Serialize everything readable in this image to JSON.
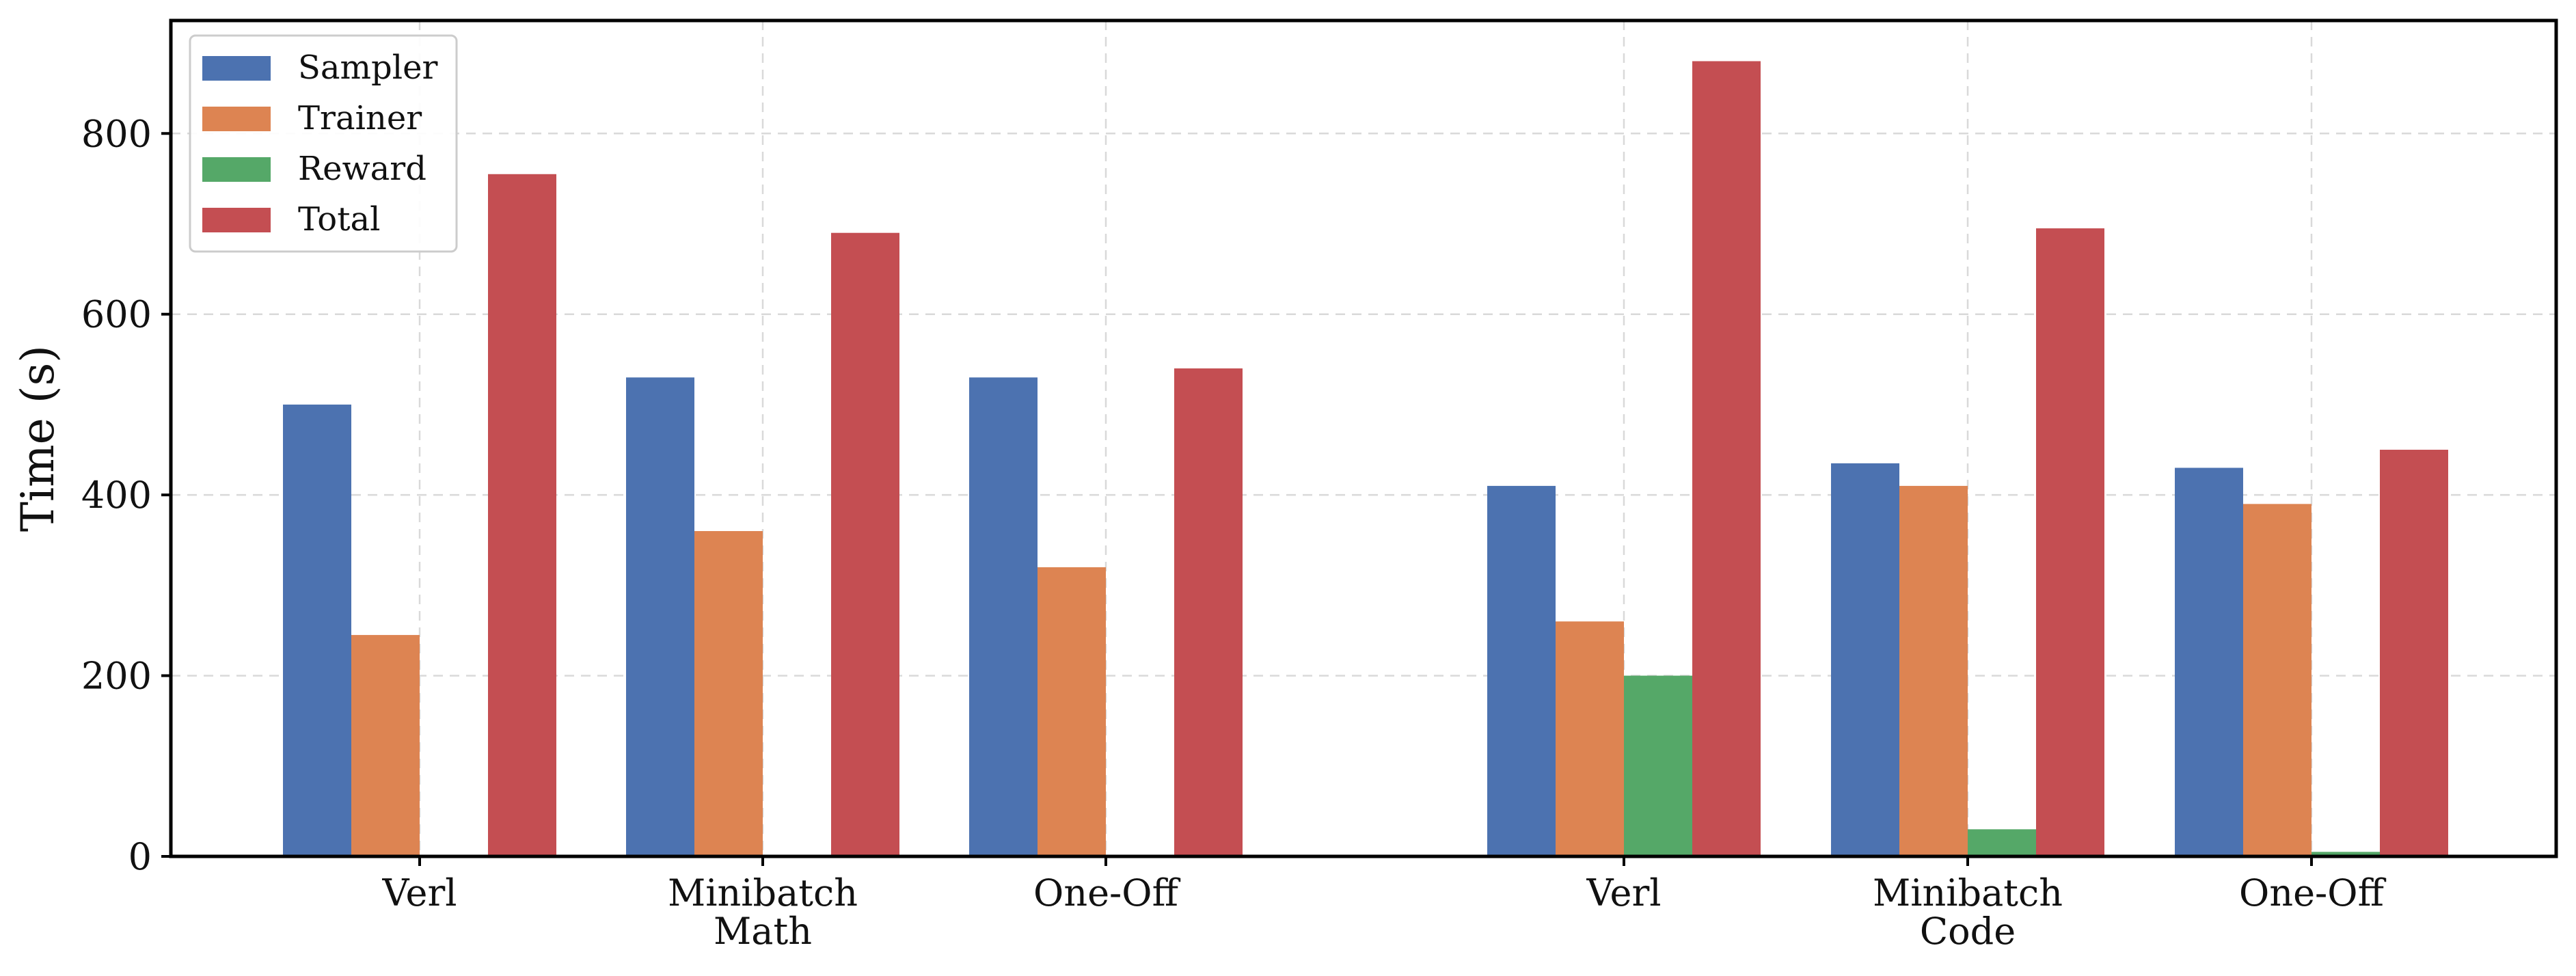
{
  "chart_data": {
    "type": "bar",
    "title": "",
    "xlabel": "",
    "ylabel": "Time (s)",
    "ylim": [
      0,
      925
    ],
    "yticks": [
      0,
      200,
      400,
      600,
      800
    ],
    "grid": true,
    "legend_position": "top-left",
    "groups": [
      {
        "categories": [
          "Verl",
          "Minibatch",
          "One-Off"
        ],
        "group_label": "Math"
      },
      {
        "categories": [
          "Verl",
          "Minibatch",
          "One-Off"
        ],
        "group_label": "Code"
      }
    ],
    "categories": [
      "Verl",
      "Minibatch",
      "One-Off",
      "Verl",
      "Minibatch",
      "One-Off"
    ],
    "series": [
      {
        "name": "Sampler",
        "color": "#4c72b0",
        "values": [
          500,
          530,
          530,
          410,
          435,
          430
        ]
      },
      {
        "name": "Trainer",
        "color": "#dd8452",
        "values": [
          245,
          360,
          320,
          260,
          410,
          390
        ]
      },
      {
        "name": "Reward",
        "color": "#55a868",
        "values": [
          0,
          0,
          0,
          200,
          30,
          5
        ]
      },
      {
        "name": "Total",
        "color": "#c44e52",
        "values": [
          755,
          690,
          540,
          880,
          695,
          450
        ]
      }
    ]
  }
}
